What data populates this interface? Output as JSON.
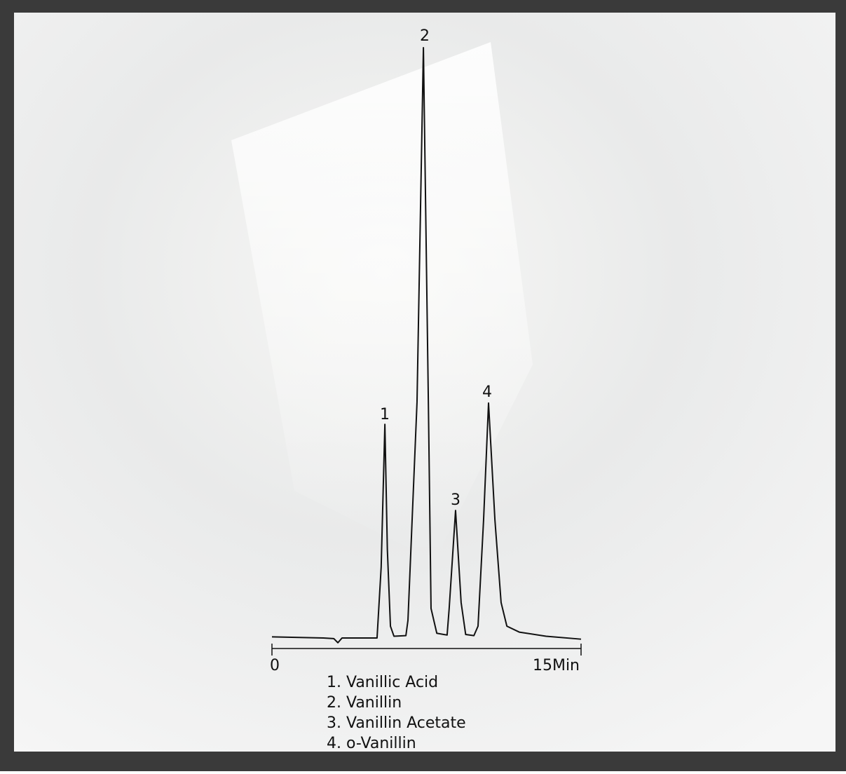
{
  "chart_data": {
    "type": "line",
    "x": [
      0,
      2.5,
      3.0,
      3.2,
      3.4,
      5.1,
      5.3,
      5.48,
      5.6,
      5.75,
      5.92,
      6.5,
      6.6,
      7.04,
      7.35,
      7.59,
      7.72,
      8.0,
      8.5,
      8.6,
      8.91,
      9.18,
      9.4,
      9.8,
      10.0,
      10.27,
      10.51,
      10.82,
      11.12,
      11.4,
      12.0,
      13.3,
      15
    ],
    "series": [
      {
        "color": "#111111",
        "values": [
          0.2,
          0,
          -0.1,
          -0.8,
          0,
          0,
          12,
          36.2,
          15,
          2,
          0.3,
          0.4,
          3,
          40,
          100,
          40,
          5,
          0.8,
          0.5,
          5,
          21.6,
          6,
          0.6,
          0.4,
          2,
          20,
          39.8,
          20,
          6,
          2,
          1,
          0.3,
          -0.2
        ]
      }
    ],
    "xlim": [
      0,
      15
    ],
    "xticks": [
      0,
      {
        "value": 15,
        "label": "15Min"
      }
    ],
    "ylim": [
      0,
      100
    ],
    "annotations": [
      "1",
      "2",
      "3",
      "4"
    ],
    "legend": [
      "1. Vanillic Acid",
      "2. Vanillin",
      "3. Vanillin Acetate",
      "4. o-Vanillin"
    ]
  }
}
